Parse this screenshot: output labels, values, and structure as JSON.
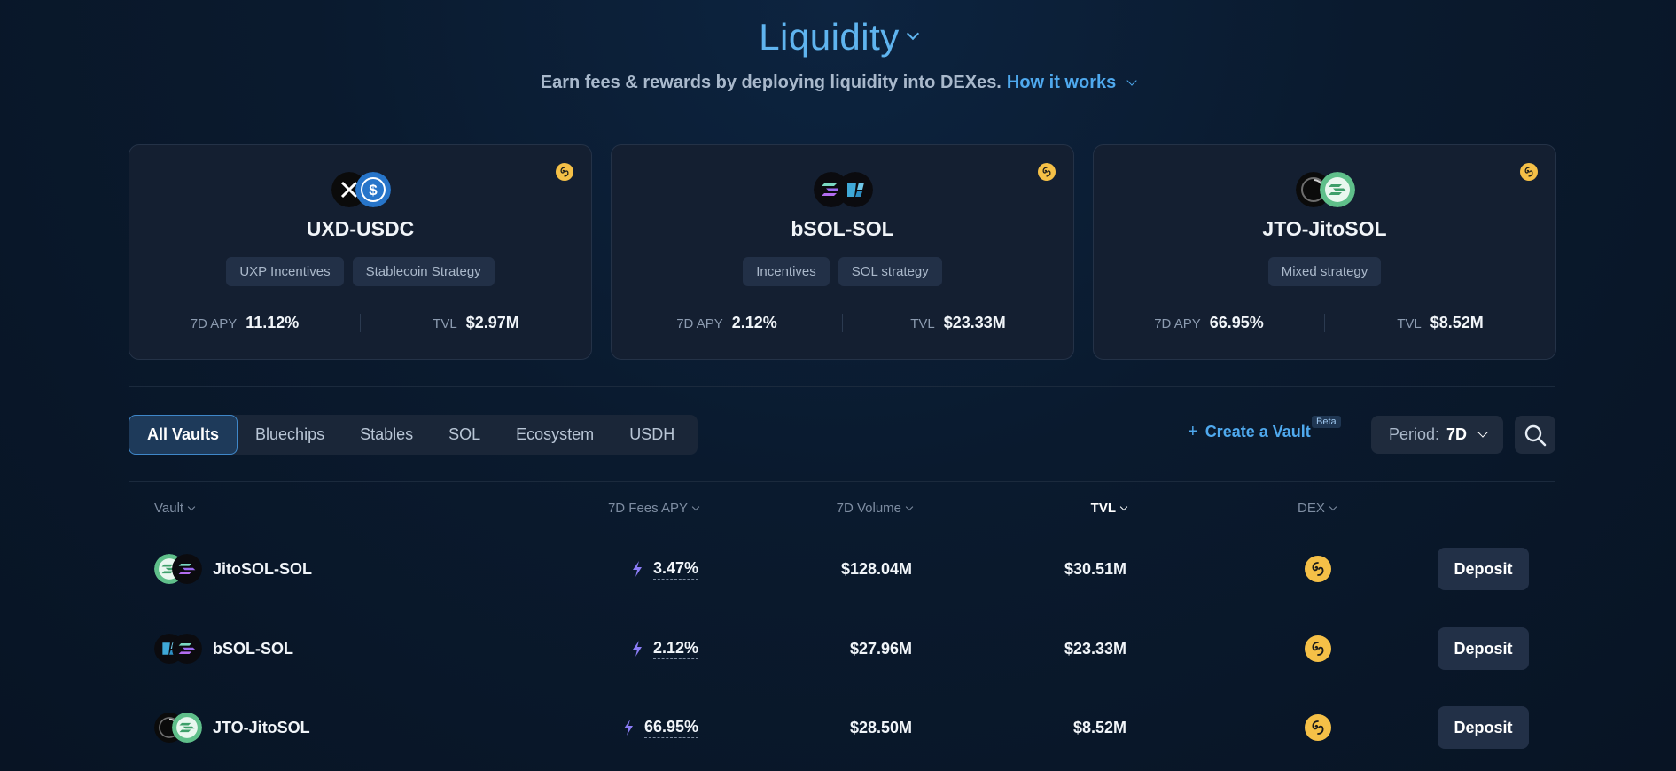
{
  "header": {
    "title": "Liquidity",
    "subtitle": "Earn fees & rewards by deploying liquidity into DEXes.",
    "how_it_works": "How it works"
  },
  "featured": [
    {
      "name": "UXD-USDC",
      "tags": [
        "UXP Incentives",
        "Stablecoin Strategy"
      ],
      "apy_label": "7D APY",
      "apy": "11.12%",
      "tvl_label": "TVL",
      "tvl": "$2.97M",
      "token_a": "uxd-icon",
      "token_b": "usdc-icon"
    },
    {
      "name": "bSOL-SOL",
      "tags": [
        "Incentives",
        "SOL strategy"
      ],
      "apy_label": "7D APY",
      "apy": "2.12%",
      "tvl_label": "TVL",
      "tvl": "$23.33M",
      "token_a": "sol-icon",
      "token_b": "bsol-icon"
    },
    {
      "name": "JTO-JitoSOL",
      "tags": [
        "Mixed strategy"
      ],
      "apy_label": "7D APY",
      "apy": "66.95%",
      "tvl_label": "TVL",
      "tvl": "$8.52M",
      "token_a": "jto-icon",
      "token_b": "jitosol-icon"
    }
  ],
  "filters": {
    "tabs": [
      "All Vaults",
      "Bluechips",
      "Stables",
      "SOL",
      "Ecosystem",
      "USDH"
    ],
    "active": "All Vaults",
    "create_vault": "Create a Vault",
    "beta": "Beta",
    "period_label": "Period:",
    "period_value": "7D"
  },
  "table": {
    "columns": {
      "vault": "Vault",
      "apy": "7D Fees APY",
      "volume": "7D Volume",
      "tvl": "TVL",
      "dex": "DEX"
    },
    "rows": [
      {
        "vault": "JitoSOL-SOL",
        "apy": "3.47%",
        "volume": "$128.04M",
        "tvl": "$30.51M",
        "action": "Deposit",
        "token_a": "jitosol-icon",
        "token_b": "sol-icon"
      },
      {
        "vault": "bSOL-SOL",
        "apy": "2.12%",
        "volume": "$27.96M",
        "tvl": "$23.33M",
        "action": "Deposit",
        "token_a": "bsol-icon",
        "token_b": "sol-icon"
      },
      {
        "vault": "JTO-JitoSOL",
        "apy": "66.95%",
        "volume": "$28.50M",
        "tvl": "$8.52M",
        "action": "Deposit",
        "token_a": "jto-icon",
        "token_b": "jitosol-icon"
      }
    ]
  },
  "colors": {
    "accent": "#4fa9ee",
    "background": "#0a1a2e",
    "card": "#141f31",
    "dex": "#f5c047",
    "bolt": "#8b7cf6"
  }
}
